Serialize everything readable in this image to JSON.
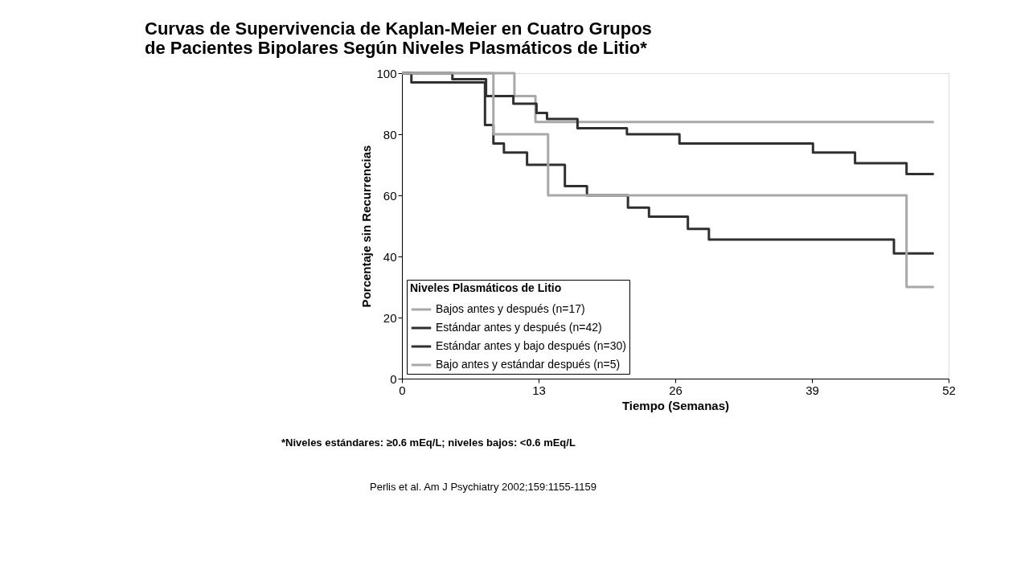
{
  "chart_data": {
    "type": "step",
    "title": "Curvas de Supervivencia de Kaplan-Meier en Cuatro Grupos\nde Pacientes Bipolares Según Niveles Plasmáticos de Litio*",
    "xlabel": "Tiempo (Semanas)",
    "ylabel": "Porcentaje sin Recurrencias",
    "legend_title": "Niveles Plasmáticos de Litio",
    "legend": "bottom left",
    "grid": false,
    "marker": "none",
    "line_style": "solid",
    "xlim": [
      0,
      52
    ],
    "xticks": [
      0,
      13,
      26,
      39,
      52
    ],
    "ylim": [
      0,
      100
    ],
    "yticks": [
      0,
      20,
      40,
      60,
      80,
      100
    ],
    "series": [
      {
        "name": "Bajos antes y después (n=17)",
        "color": "#a8a8a8",
        "x": [
          0,
          10.7,
          12.7,
          50.6
        ],
        "values": [
          100,
          92.5,
          84,
          84
        ]
      },
      {
        "name": "Estándar antes y después (n=42)",
        "color": "#303030",
        "x": [
          0,
          4.8,
          8.0,
          10.6,
          12.8,
          13.8,
          16.7,
          21.4,
          26.4,
          39.1,
          43.1,
          48.0,
          50.6
        ],
        "values": [
          100,
          98,
          92.5,
          90,
          87,
          85,
          82,
          80,
          77,
          74,
          70.5,
          67,
          67
        ]
      },
      {
        "name": "Estándar antes y bajo después (n=30)",
        "color": "#303030",
        "x": [
          0,
          0.9,
          7.9,
          8.7,
          9.7,
          11.9,
          15.5,
          17.6,
          21.5,
          23.5,
          27.2,
          29.2,
          46.8,
          50.6
        ],
        "values": [
          100,
          97,
          83,
          77,
          74,
          70,
          63,
          60,
          56,
          53,
          49,
          45.5,
          41,
          41
        ]
      },
      {
        "name": "Bajo antes y estándar después (n=5)",
        "color": "#a8a8a8",
        "x": [
          0,
          8.7,
          13.9,
          48.0,
          50.6
        ],
        "values": [
          100,
          80,
          60,
          30,
          30
        ]
      }
    ],
    "annotations": [
      "*Niveles estándares: ≥0.6 mEq/L; niveles bajos: <0.6 mEq/L",
      "Perlis et al. Am J Psychiatry 2002;159:1155-1159"
    ]
  }
}
